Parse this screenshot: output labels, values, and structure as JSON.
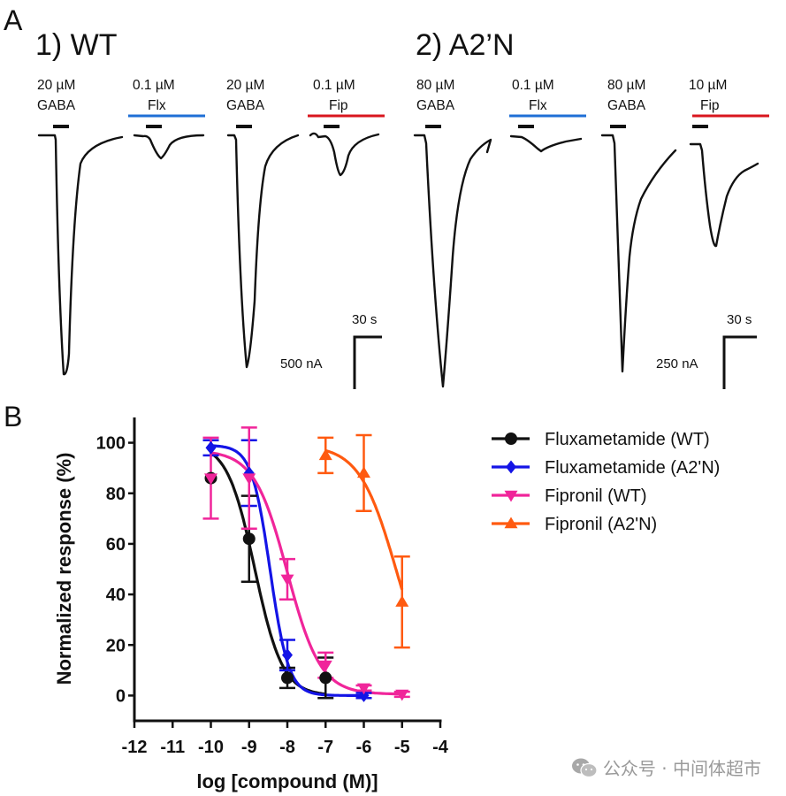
{
  "panel_a": {
    "letter": "A",
    "groups": [
      {
        "title": "1) WT",
        "recordings": [
          {
            "conc": "20 µM",
            "compound": "GABA",
            "bar_color": "",
            "relative_peak": 1.0
          },
          {
            "conc": "0.1 µM",
            "compound": "Flx",
            "bar_color": "#1f6fd6",
            "relative_peak": 0.09
          },
          {
            "conc": "20 µM",
            "compound": "GABA",
            "bar_color": "",
            "relative_peak": 0.93
          },
          {
            "conc": "0.1 µM",
            "compound": "Fip",
            "bar_color": "#d9161e",
            "relative_peak": 0.19
          }
        ],
        "scale": {
          "time": "30 s",
          "current": "500 nA"
        }
      },
      {
        "title": "2) A2’N",
        "recordings": [
          {
            "conc": "80 µM",
            "compound": "GABA",
            "bar_color": "",
            "relative_peak": 1.0
          },
          {
            "conc": "0.1 µM",
            "compound": "Flx",
            "bar_color": "#1f6fd6",
            "relative_peak": 0.06
          },
          {
            "conc": "80 µM",
            "compound": "GABA",
            "bar_color": "",
            "relative_peak": 0.93
          },
          {
            "conc": "10 µM",
            "compound": "Fip",
            "bar_color": "#d9161e",
            "relative_peak": 0.47
          }
        ],
        "scale": {
          "time": "30 s",
          "current": "250 nA"
        }
      }
    ]
  },
  "panel_b": {
    "letter": "B"
  },
  "chart_data": {
    "type": "scatter",
    "title": "",
    "xlabel": "log [compound (M)]",
    "ylabel": "Normalized response (%)",
    "xlim": [
      -12,
      -4
    ],
    "ylim": [
      -10,
      110
    ],
    "xticks": [
      -12,
      -11,
      -10,
      -9,
      -8,
      -7,
      -6,
      -5,
      -4
    ],
    "xtick_labels": [
      "-12",
      "-11",
      "-10",
      "-9",
      "-8",
      "-7",
      "-6",
      "-5",
      "-4"
    ],
    "yticks": [
      0,
      20,
      40,
      60,
      80,
      100
    ],
    "ytick_labels": [
      "0",
      "20",
      "40",
      "60",
      "80",
      "100"
    ],
    "grid": false,
    "legend_position": "right",
    "series": [
      {
        "name": "Fluxametamide (WT)",
        "color": "#111111",
        "marker": "circle",
        "x": [
          -10,
          -9,
          -8,
          -7
        ],
        "y": [
          86,
          62,
          7,
          7
        ],
        "err": [
          0,
          17,
          4,
          8
        ],
        "fit": {
          "top": 100,
          "bottom": 0,
          "log_ic50": -8.85,
          "hill": 1.2
        }
      },
      {
        "name": "Fluxametamide (A2'N)",
        "color": "#1414e6",
        "marker": "diamond",
        "x": [
          -10,
          -9,
          -8,
          -6
        ],
        "y": [
          98,
          88,
          16,
          0
        ],
        "err": [
          3,
          13,
          6,
          1
        ],
        "fit": {
          "top": 99,
          "bottom": 0,
          "log_ic50": -8.45,
          "hill": 1.8
        }
      },
      {
        "name": "Fipronil (WT)",
        "color": "#f0259a",
        "marker": "triangle-down",
        "x": [
          -10,
          -9,
          -8,
          -7,
          -6,
          -5
        ],
        "y": [
          86,
          86,
          46,
          12,
          3,
          0.5
        ],
        "err": [
          16,
          20,
          8,
          5,
          1,
          1
        ],
        "fit": {
          "top": 97,
          "bottom": 0.5,
          "log_ic50": -8.0,
          "hill": 1.0
        }
      },
      {
        "name": "Fipronil (A2'N)",
        "color": "#ff5a10",
        "marker": "triangle-up",
        "x": [
          -7,
          -6,
          -5
        ],
        "y": [
          95,
          88,
          37
        ],
        "err": [
          7,
          15,
          18
        ],
        "fit": {
          "top": 99,
          "bottom": 0,
          "log_ic50": -5.15,
          "hill": 0.9,
          "x_start": -7
        }
      }
    ]
  },
  "watermark": {
    "icon": "wechat-icon",
    "text": "公众号 · 中间体超市"
  }
}
